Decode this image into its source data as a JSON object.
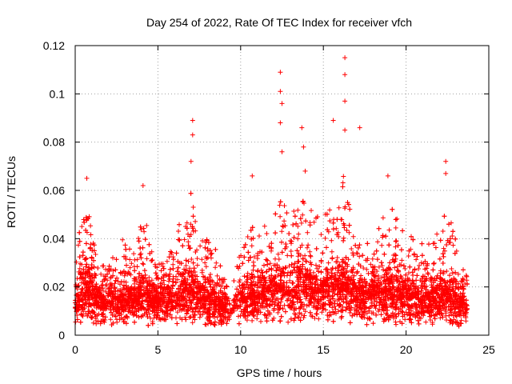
{
  "chart_data": {
    "type": "scatter",
    "title": "Day 254 of 2022, Rate Of TEC Index for receiver vfch",
    "xlabel": "GPS time / hours",
    "ylabel": "ROTI / TECUs",
    "xlim": [
      0,
      25
    ],
    "ylim": [
      0,
      0.12
    ],
    "x_ticks": [
      0,
      5,
      10,
      15,
      20,
      25
    ],
    "x_tick_labels": [
      "0",
      "5",
      "10",
      "15",
      "20",
      "25"
    ],
    "y_ticks": [
      0,
      0.02,
      0.04,
      0.06,
      0.08,
      0.1,
      0.12
    ],
    "y_tick_labels": [
      "0",
      "0.02",
      "0.04",
      "0.06",
      "0.08",
      "0.1",
      "0.12"
    ],
    "grid": true,
    "marker": "+",
    "color": "#ff0000",
    "series": [
      {
        "name": "ROTI",
        "notable_points": [
          {
            "x": 0.7,
            "y": 0.065
          },
          {
            "x": 4.1,
            "y": 0.062
          },
          {
            "x": 7.1,
            "y": 0.089
          },
          {
            "x": 7.1,
            "y": 0.083
          },
          {
            "x": 7.0,
            "y": 0.072
          },
          {
            "x": 10.7,
            "y": 0.066
          },
          {
            "x": 12.4,
            "y": 0.109
          },
          {
            "x": 12.4,
            "y": 0.101
          },
          {
            "x": 12.5,
            "y": 0.096
          },
          {
            "x": 12.4,
            "y": 0.088
          },
          {
            "x": 12.5,
            "y": 0.076
          },
          {
            "x": 13.7,
            "y": 0.086
          },
          {
            "x": 13.8,
            "y": 0.078
          },
          {
            "x": 13.9,
            "y": 0.068
          },
          {
            "x": 15.6,
            "y": 0.089
          },
          {
            "x": 16.3,
            "y": 0.115
          },
          {
            "x": 16.3,
            "y": 0.108
          },
          {
            "x": 16.3,
            "y": 0.097
          },
          {
            "x": 16.3,
            "y": 0.085
          },
          {
            "x": 17.2,
            "y": 0.086
          },
          {
            "x": 18.9,
            "y": 0.066
          },
          {
            "x": 22.4,
            "y": 0.072
          },
          {
            "x": 22.4,
            "y": 0.067
          }
        ],
        "activity_profile": [
          {
            "x": 0.0,
            "base": 0.012,
            "peak": 0.025
          },
          {
            "x": 0.3,
            "base": 0.015,
            "peak": 0.05
          },
          {
            "x": 0.7,
            "base": 0.018,
            "peak": 0.06
          },
          {
            "x": 1.2,
            "base": 0.014,
            "peak": 0.035
          },
          {
            "x": 2.0,
            "base": 0.013,
            "peak": 0.028
          },
          {
            "x": 2.8,
            "base": 0.014,
            "peak": 0.04
          },
          {
            "x": 3.5,
            "base": 0.014,
            "peak": 0.035
          },
          {
            "x": 4.1,
            "base": 0.016,
            "peak": 0.052
          },
          {
            "x": 4.6,
            "base": 0.014,
            "peak": 0.038
          },
          {
            "x": 5.5,
            "base": 0.014,
            "peak": 0.03
          },
          {
            "x": 6.2,
            "base": 0.015,
            "peak": 0.046
          },
          {
            "x": 7.0,
            "base": 0.018,
            "peak": 0.06
          },
          {
            "x": 7.6,
            "base": 0.015,
            "peak": 0.04
          },
          {
            "x": 8.3,
            "base": 0.014,
            "peak": 0.04
          },
          {
            "x": 9.0,
            "base": 0.012,
            "peak": 0.025
          },
          {
            "x": 9.5,
            "base": 0.01,
            "peak": 0.02
          },
          {
            "x": 10.0,
            "base": 0.014,
            "peak": 0.035
          },
          {
            "x": 10.7,
            "base": 0.016,
            "peak": 0.048
          },
          {
            "x": 11.5,
            "base": 0.016,
            "peak": 0.045
          },
          {
            "x": 12.3,
            "base": 0.019,
            "peak": 0.062
          },
          {
            "x": 13.0,
            "base": 0.017,
            "peak": 0.052
          },
          {
            "x": 13.7,
            "base": 0.02,
            "peak": 0.065
          },
          {
            "x": 14.5,
            "base": 0.017,
            "peak": 0.05
          },
          {
            "x": 15.2,
            "base": 0.018,
            "peak": 0.052
          },
          {
            "x": 15.7,
            "base": 0.019,
            "peak": 0.058
          },
          {
            "x": 16.3,
            "base": 0.02,
            "peak": 0.068
          },
          {
            "x": 17.0,
            "base": 0.015,
            "peak": 0.042
          },
          {
            "x": 17.8,
            "base": 0.015,
            "peak": 0.038
          },
          {
            "x": 18.5,
            "base": 0.017,
            "peak": 0.05
          },
          {
            "x": 19.0,
            "base": 0.017,
            "peak": 0.055
          },
          {
            "x": 19.8,
            "base": 0.015,
            "peak": 0.045
          },
          {
            "x": 20.5,
            "base": 0.015,
            "peak": 0.04
          },
          {
            "x": 21.3,
            "base": 0.014,
            "peak": 0.038
          },
          {
            "x": 22.0,
            "base": 0.015,
            "peak": 0.045
          },
          {
            "x": 22.4,
            "base": 0.016,
            "peak": 0.055
          },
          {
            "x": 23.0,
            "base": 0.014,
            "peak": 0.04
          },
          {
            "x": 23.7,
            "base": 0.012,
            "peak": 0.025
          }
        ]
      }
    ]
  }
}
